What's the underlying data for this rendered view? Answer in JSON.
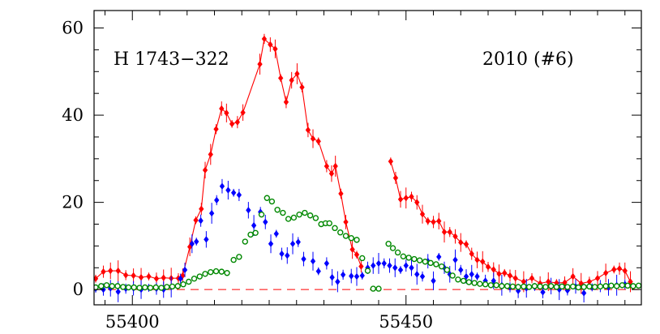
{
  "chart_data": {
    "type": "scatter",
    "title": "",
    "xlabel": "",
    "ylabel": "",
    "xlim": [
      55393,
      55493
    ],
    "ylim": [
      -3.5,
      64
    ],
    "xticks": [
      55400,
      55450
    ],
    "yticks": [
      0,
      20,
      40,
      60
    ],
    "annotations": {
      "left": "H 1743−322",
      "right": "2010 (#6)"
    },
    "grid": false,
    "reference_line": {
      "y": 0,
      "color": "#ff0000",
      "style": "dashed"
    },
    "series": [
      {
        "color": "#ff0000",
        "marker": "filled-diamond",
        "connected": true,
        "points": [
          [
            55393.3,
            2.5
          ],
          [
            55394.7,
            4.1
          ],
          [
            55396.0,
            4.3
          ],
          [
            55397.4,
            4.3
          ],
          [
            55398.8,
            3.3
          ],
          [
            55400.2,
            3.2
          ],
          [
            55401.6,
            2.8
          ],
          [
            55403.0,
            3.0
          ],
          [
            55404.4,
            2.5
          ],
          [
            55405.7,
            2.7
          ],
          [
            55407.1,
            2.6
          ],
          [
            55408.4,
            2.6
          ],
          [
            55409.2,
            3.2
          ],
          [
            55410.5,
            9.8
          ],
          [
            55411.6,
            15.9
          ],
          [
            55412.6,
            18.5
          ],
          [
            55413.3,
            27.4
          ],
          [
            55414.3,
            31.0
          ],
          [
            55415.3,
            36.8
          ],
          [
            55416.3,
            41.5
          ],
          [
            55417.2,
            40.5
          ],
          [
            55418.2,
            38.0
          ],
          [
            55419.2,
            38.4
          ],
          [
            55420.2,
            40.6
          ],
          [
            55423.3,
            51.7
          ],
          [
            55424.1,
            57.5
          ],
          [
            55425.2,
            56.2
          ],
          [
            55426.1,
            55.2
          ],
          [
            55427.1,
            48.5
          ],
          [
            55428.1,
            43.0
          ],
          [
            55429.1,
            48.0
          ],
          [
            55430.1,
            49.5
          ],
          [
            55431.0,
            46.4
          ],
          [
            55432.1,
            36.6
          ],
          [
            55433.0,
            34.6
          ],
          [
            55434.0,
            34.0
          ],
          [
            55435.5,
            28.3
          ],
          [
            55436.4,
            26.6
          ],
          [
            55437.1,
            28.3
          ],
          [
            55438.1,
            22.0
          ],
          [
            55439.0,
            15.5
          ],
          [
            55440.2,
            9.2
          ],
          [
            55441.0,
            8.0
          ],
          [
            55441.8,
            5.3
          ]
        ]
      },
      {
        "color": "#ff0000",
        "marker": "filled-diamond",
        "connected": true,
        "points": [
          [
            55447.2,
            29.4
          ],
          [
            55448.1,
            25.6
          ],
          [
            55449.0,
            20.7
          ],
          [
            55450.0,
            21.0
          ],
          [
            55451.0,
            21.3
          ],
          [
            55452.0,
            20.0
          ],
          [
            55453.0,
            17.3
          ],
          [
            55454.0,
            15.7
          ],
          [
            55455.0,
            15.5
          ],
          [
            55456.0,
            15.7
          ],
          [
            55457.0,
            13.2
          ],
          [
            55458.0,
            13.2
          ],
          [
            55459.0,
            12.2
          ],
          [
            55460.0,
            10.8
          ],
          [
            55461.0,
            10.4
          ],
          [
            55462.0,
            8.2
          ],
          [
            55463.0,
            6.8
          ],
          [
            55464.0,
            6.4
          ],
          [
            55465.0,
            5.2
          ],
          [
            55466.0,
            4.6
          ],
          [
            55467.0,
            3.6
          ],
          [
            55468.0,
            3.8
          ],
          [
            55469.0,
            3.2
          ],
          [
            55470.0,
            2.6
          ],
          [
            55471.5,
            1.8
          ],
          [
            55473.0,
            2.6
          ],
          [
            55474.5,
            1.4
          ],
          [
            55476.0,
            1.8
          ],
          [
            55477.5,
            1.5
          ],
          [
            55479.0,
            1.6
          ],
          [
            55480.5,
            3.0
          ],
          [
            55482.0,
            1.4
          ],
          [
            55483.5,
            1.8
          ],
          [
            55485.0,
            2.6
          ],
          [
            55486.5,
            3.8
          ],
          [
            55488.0,
            4.6
          ],
          [
            55489.0,
            4.8
          ],
          [
            55490.0,
            4.3
          ],
          [
            55491.0,
            1.8
          ]
        ]
      },
      {
        "color": "#0000ff",
        "marker": "filled-diamond",
        "connected": false,
        "points": [
          [
            55393.3,
            0.2
          ],
          [
            55394.7,
            0.0
          ],
          [
            55396.0,
            0.3
          ],
          [
            55397.4,
            -0.5
          ],
          [
            55398.8,
            0.2
          ],
          [
            55400.2,
            0.3
          ],
          [
            55401.6,
            0.0
          ],
          [
            55403.0,
            0.4
          ],
          [
            55404.4,
            0.2
          ],
          [
            55405.7,
            0.0
          ],
          [
            55407.1,
            0.6
          ],
          [
            55408.8,
            2.5
          ],
          [
            55409.6,
            4.5
          ],
          [
            55410.9,
            10.5
          ],
          [
            55411.7,
            11.0
          ],
          [
            55412.5,
            15.8
          ],
          [
            55413.5,
            11.5
          ],
          [
            55414.5,
            17.5
          ],
          [
            55415.4,
            20.5
          ],
          [
            55416.4,
            23.7
          ],
          [
            55417.5,
            22.8
          ],
          [
            55418.5,
            22.2
          ],
          [
            55419.5,
            21.7
          ],
          [
            55421.2,
            18.2
          ],
          [
            55422.2,
            14.7
          ],
          [
            55423.4,
            17.8
          ],
          [
            55424.3,
            15.5
          ],
          [
            55425.3,
            10.5
          ],
          [
            55426.3,
            12.8
          ],
          [
            55427.3,
            8.2
          ],
          [
            55428.3,
            7.8
          ],
          [
            55429.3,
            10.5
          ],
          [
            55430.3,
            10.9
          ],
          [
            55431.3,
            7.0
          ],
          [
            55433.0,
            6.5
          ],
          [
            55434.0,
            4.2
          ],
          [
            55435.5,
            6.0
          ],
          [
            55436.5,
            2.8
          ],
          [
            55437.5,
            1.8
          ],
          [
            55438.5,
            3.4
          ],
          [
            55440.0,
            3.1
          ],
          [
            55441.0,
            3.0
          ],
          [
            55442.0,
            3.2
          ],
          [
            55443.0,
            5.0
          ],
          [
            55444.0,
            5.5
          ],
          [
            55445.0,
            6.0
          ],
          [
            55446.0,
            6.0
          ],
          [
            55447.0,
            5.5
          ],
          [
            55448.0,
            5.0
          ],
          [
            55449.0,
            4.5
          ],
          [
            55450.0,
            5.5
          ],
          [
            55451.0,
            5.0
          ],
          [
            55452.0,
            3.5
          ],
          [
            55453.0,
            3.0
          ],
          [
            55454.0,
            6.5
          ],
          [
            55455.0,
            2.0
          ],
          [
            55456.0,
            7.5
          ],
          [
            55457.0,
            5.0
          ],
          [
            55458.0,
            3.5
          ],
          [
            55459.0,
            6.8
          ],
          [
            55460.0,
            4.5
          ],
          [
            55461.0,
            3.0
          ],
          [
            55462.0,
            3.5
          ],
          [
            55463.0,
            3.0
          ],
          [
            55464.5,
            2.0
          ],
          [
            55466.0,
            2.0
          ],
          [
            55467.5,
            1.0
          ],
          [
            55469.0,
            0.5
          ],
          [
            55470.5,
            -0.3
          ],
          [
            55472.0,
            0.3
          ],
          [
            55473.5,
            0.6
          ],
          [
            55475.0,
            -0.6
          ],
          [
            55476.5,
            0.8
          ],
          [
            55478.0,
            0.0
          ],
          [
            55479.5,
            -0.2
          ],
          [
            55481.0,
            0.7
          ],
          [
            55482.5,
            -0.8
          ],
          [
            55484.0,
            0.5
          ],
          [
            55485.5,
            0.8
          ],
          [
            55487.0,
            0.5
          ],
          [
            55488.5,
            1.0
          ],
          [
            55490.0,
            1.2
          ]
        ]
      },
      {
        "color": "#008800",
        "marker": "open-circle",
        "connected": false,
        "points": [
          [
            55393.3,
            0.5
          ],
          [
            55394.3,
            0.8
          ],
          [
            55395.3,
            1.0
          ],
          [
            55396.3,
            0.8
          ],
          [
            55397.3,
            0.8
          ],
          [
            55398.3,
            0.6
          ],
          [
            55399.3,
            0.5
          ],
          [
            55400.3,
            0.5
          ],
          [
            55401.3,
            0.4
          ],
          [
            55402.3,
            0.5
          ],
          [
            55403.3,
            0.4
          ],
          [
            55404.3,
            0.5
          ],
          [
            55405.3,
            0.4
          ],
          [
            55406.3,
            0.6
          ],
          [
            55407.3,
            0.7
          ],
          [
            55408.3,
            0.8
          ],
          [
            55409.3,
            1.2
          ],
          [
            55410.3,
            1.8
          ],
          [
            55411.3,
            2.5
          ],
          [
            55412.3,
            3.0
          ],
          [
            55413.3,
            3.6
          ],
          [
            55414.3,
            4.0
          ],
          [
            55415.3,
            4.2
          ],
          [
            55416.3,
            4.1
          ],
          [
            55417.3,
            3.8
          ],
          [
            55418.5,
            6.8
          ],
          [
            55419.5,
            7.5
          ],
          [
            55420.6,
            11.0
          ],
          [
            55421.6,
            12.6
          ],
          [
            55422.5,
            13.0
          ],
          [
            55423.6,
            17.2
          ],
          [
            55424.6,
            21.0
          ],
          [
            55425.5,
            20.2
          ],
          [
            55426.5,
            18.3
          ],
          [
            55427.5,
            17.6
          ],
          [
            55428.5,
            16.2
          ],
          [
            55429.5,
            16.5
          ],
          [
            55430.5,
            17.2
          ],
          [
            55431.5,
            17.6
          ],
          [
            55432.5,
            17.0
          ],
          [
            55433.5,
            16.4
          ],
          [
            55434.5,
            15.0
          ],
          [
            55435.3,
            15.2
          ],
          [
            55436.0,
            15.2
          ],
          [
            55437.0,
            14.1
          ],
          [
            55438.0,
            13.1
          ],
          [
            55439.0,
            12.3
          ],
          [
            55440.0,
            11.8
          ],
          [
            55441.0,
            11.4
          ],
          [
            55442.0,
            7.2
          ],
          [
            55443.0,
            4.3
          ],
          [
            55444.0,
            0.2
          ],
          [
            55445.0,
            0.2
          ],
          [
            55446.8,
            10.5
          ],
          [
            55447.6,
            9.5
          ],
          [
            55448.5,
            8.5
          ],
          [
            55449.5,
            7.6
          ],
          [
            55450.5,
            7.3
          ],
          [
            55451.5,
            7.0
          ],
          [
            55452.5,
            6.7
          ],
          [
            55453.5,
            6.4
          ],
          [
            55454.5,
            6.1
          ],
          [
            55455.5,
            5.8
          ],
          [
            55456.5,
            5.3
          ],
          [
            55457.5,
            4.5
          ],
          [
            55458.5,
            3.2
          ],
          [
            55459.5,
            2.3
          ],
          [
            55460.5,
            2.0
          ],
          [
            55461.5,
            1.7
          ],
          [
            55462.5,
            1.5
          ],
          [
            55463.5,
            1.3
          ],
          [
            55464.5,
            1.2
          ],
          [
            55465.5,
            1.0
          ],
          [
            55466.5,
            1.0
          ],
          [
            55467.5,
            0.8
          ],
          [
            55468.5,
            0.8
          ],
          [
            55469.5,
            0.7
          ],
          [
            55470.5,
            0.6
          ],
          [
            55471.5,
            0.7
          ],
          [
            55472.5,
            0.6
          ],
          [
            55473.5,
            0.8
          ],
          [
            55474.5,
            0.7
          ],
          [
            55475.5,
            0.6
          ],
          [
            55476.5,
            0.8
          ],
          [
            55477.5,
            0.6
          ],
          [
            55478.5,
            0.7
          ],
          [
            55479.5,
            0.6
          ],
          [
            55480.5,
            0.7
          ],
          [
            55481.5,
            0.5
          ],
          [
            55482.5,
            0.6
          ],
          [
            55483.5,
            0.7
          ],
          [
            55484.5,
            0.6
          ],
          [
            55485.5,
            0.7
          ],
          [
            55486.5,
            0.8
          ],
          [
            55487.5,
            0.9
          ],
          [
            55488.5,
            0.8
          ],
          [
            55489.5,
            1.0
          ],
          [
            55490.5,
            0.9
          ],
          [
            55491.5,
            0.8
          ],
          [
            55492.5,
            0.9
          ]
        ]
      }
    ]
  }
}
